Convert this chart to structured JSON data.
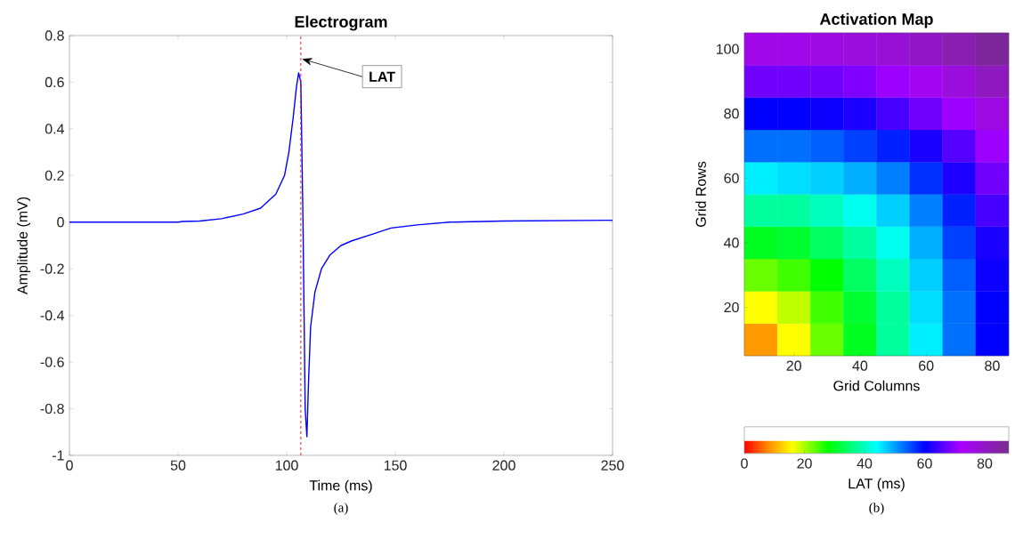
{
  "chart_data": [
    {
      "type": "line",
      "title": "Electrogram",
      "xlabel": "Time (ms)",
      "ylabel": "Amplitude (mV)",
      "xlim": [
        0,
        250
      ],
      "xticks": [
        0,
        50,
        100,
        150,
        200,
        250
      ],
      "ylim": [
        -1,
        0.8
      ],
      "yticks": [
        -1,
        -0.8,
        -0.6,
        -0.4,
        -0.2,
        0,
        0.2,
        0.4,
        0.6,
        0.8
      ],
      "marker": "none",
      "grid": false,
      "series": [
        {
          "color": "#0000ff",
          "x": [
            0,
            50,
            52,
            60,
            70,
            80,
            88,
            95,
            99,
            101,
            103,
            104.5,
            105.5,
            106.5,
            107,
            107.5,
            108,
            108.5,
            109.3,
            110,
            111,
            113,
            116,
            120,
            125,
            130,
            140,
            148,
            160,
            175,
            200,
            250
          ],
          "values": [
            0,
            0,
            0.003,
            0.005,
            0.015,
            0.035,
            0.06,
            0.12,
            0.2,
            0.3,
            0.45,
            0.58,
            0.64,
            0.6,
            0.3,
            0,
            -0.4,
            -0.8,
            -0.92,
            -0.7,
            -0.45,
            -0.3,
            -0.2,
            -0.14,
            -0.1,
            -0.08,
            -0.05,
            -0.025,
            -0.012,
            0,
            0.005,
            0.008
          ]
        }
      ],
      "ref_lines": [
        {
          "axis": "x",
          "value": 106.5,
          "color": "#ff0000",
          "line_style": "dashed"
        }
      ],
      "annotations": [
        {
          "text": "LAT",
          "x": 107,
          "y": 0.7
        },
        "(a)"
      ]
    },
    {
      "type": "heatmap",
      "title": "Activation Map",
      "xlabel": "Grid Columns",
      "ylabel": "Grid Rows",
      "clabel": "LAT (ms)",
      "categories": [
        null,
        "20",
        null,
        "40",
        null,
        "60",
        null,
        "80"
      ],
      "y_categories": [
        "100",
        null,
        "80",
        null,
        "60",
        null,
        "40",
        null,
        "20",
        null
      ],
      "clim": [
        0,
        88
      ],
      "cticks": [
        0,
        20,
        40,
        60,
        80
      ],
      "cells": [
        [
          75,
          75,
          76,
          77,
          78,
          80,
          83,
          86
        ],
        [
          68,
          68,
          68,
          69,
          71,
          74,
          77,
          81
        ],
        [
          60,
          60,
          61,
          62,
          65,
          68,
          71,
          76
        ],
        [
          53,
          53,
          54,
          56,
          58,
          62,
          66,
          71
        ],
        [
          45,
          46,
          47,
          49,
          52,
          57,
          62,
          68
        ],
        [
          38,
          38,
          40,
          43,
          47,
          52,
          58,
          65
        ],
        [
          30,
          31,
          34,
          38,
          43,
          49,
          56,
          62
        ],
        [
          23,
          25,
          28,
          34,
          40,
          47,
          54,
          61
        ],
        [
          16,
          19,
          25,
          31,
          38,
          46,
          53,
          60
        ],
        [
          9,
          16,
          23,
          30,
          38,
          45,
          53,
          60
        ]
      ],
      "annotations": [
        "(b)"
      ]
    }
  ]
}
